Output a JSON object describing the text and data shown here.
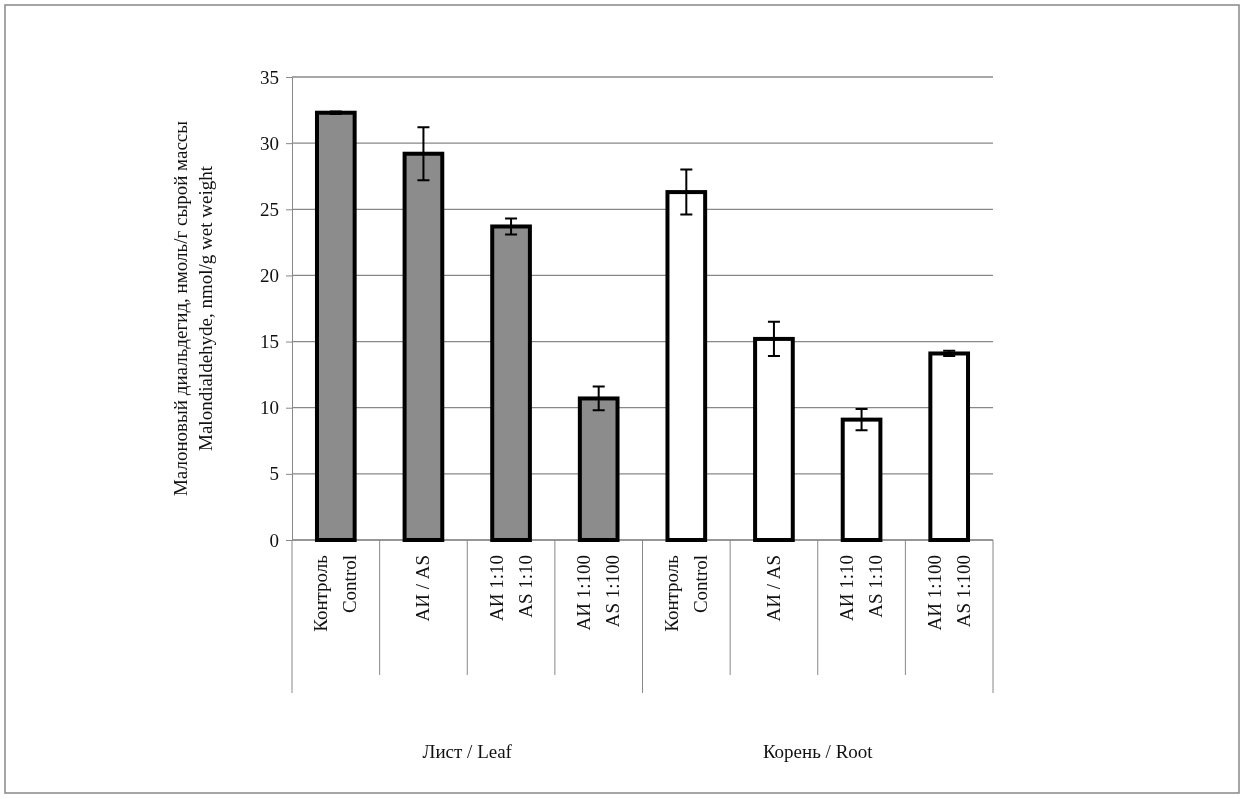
{
  "chart_data": {
    "type": "bar",
    "ylabel": "Малоновый диальдегид, нмоль/г сырой массы\nMalondialdehyde, nmol/g wet weight",
    "categories": [
      "Контроль\nControl",
      "АИ / AS",
      "АИ 1:10\nAS 1:10",
      "АИ 1:100\nAS 1:100",
      "Контроль\nControl",
      "АИ / AS",
      "АИ 1:10\nAS 1:10",
      "АИ 1:100\nAS 1:100"
    ],
    "values": [
      32.3,
      29.2,
      23.7,
      10.7,
      26.3,
      15.2,
      9.1,
      14.1
    ],
    "errors": [
      0.1,
      2.0,
      0.6,
      0.9,
      1.7,
      1.3,
      0.8,
      0.2
    ],
    "colors": [
      "#8c8c8c",
      "#8c8c8c",
      "#8c8c8c",
      "#8c8c8c",
      "#ffffff",
      "#ffffff",
      "#ffffff",
      "#ffffff"
    ],
    "ylim": [
      0,
      35
    ],
    "yticks": [
      0,
      5,
      10,
      15,
      20,
      25,
      30,
      35
    ],
    "grid": "y",
    "annotations": [
      "Лист / Leaf",
      "Корень / Root"
    ]
  }
}
